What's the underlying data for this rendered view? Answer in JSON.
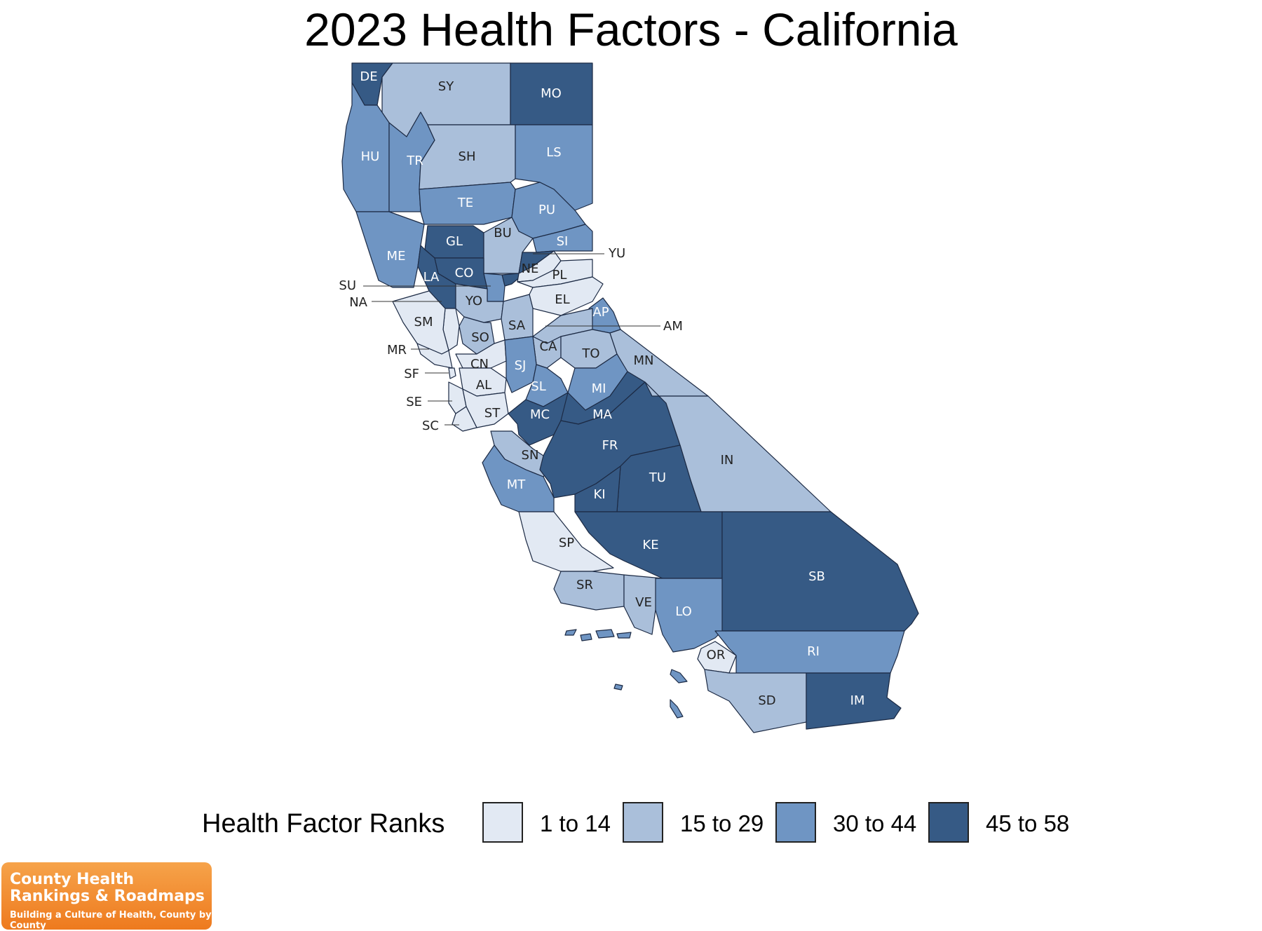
{
  "title": "2023 Health Factors - California",
  "colors": {
    "rank_1_14": "#e2e9f3",
    "rank_15_29": "#aabfda",
    "rank_30_44": "#6f95c3",
    "rank_45_58": "#365a85",
    "label_dark": "#222222",
    "label_light": "#ffffff"
  },
  "legend": {
    "title": "Health Factor Ranks",
    "items": [
      {
        "label": "1 to 14",
        "bin": "rank_1_14"
      },
      {
        "label": "15 to 29",
        "bin": "rank_15_29"
      },
      {
        "label": "30 to 44",
        "bin": "rank_30_44"
      },
      {
        "label": "45 to 58",
        "bin": "rank_45_58"
      }
    ]
  },
  "counties": [
    {
      "code": "DE",
      "bin": "rank_45_58"
    },
    {
      "code": "SY",
      "bin": "rank_15_29"
    },
    {
      "code": "MO",
      "bin": "rank_45_58"
    },
    {
      "code": "HU",
      "bin": "rank_30_44"
    },
    {
      "code": "TR",
      "bin": "rank_30_44"
    },
    {
      "code": "SH",
      "bin": "rank_15_29"
    },
    {
      "code": "LS",
      "bin": "rank_30_44"
    },
    {
      "code": "TE",
      "bin": "rank_30_44"
    },
    {
      "code": "PU",
      "bin": "rank_30_44"
    },
    {
      "code": "ME",
      "bin": "rank_30_44"
    },
    {
      "code": "GL",
      "bin": "rank_45_58"
    },
    {
      "code": "BU",
      "bin": "rank_15_29"
    },
    {
      "code": "SI",
      "bin": "rank_30_44"
    },
    {
      "code": "YU",
      "bin": "rank_45_58"
    },
    {
      "code": "LA",
      "bin": "rank_45_58"
    },
    {
      "code": "CO",
      "bin": "rank_45_58"
    },
    {
      "code": "NE",
      "bin": "rank_1_14"
    },
    {
      "code": "PL",
      "bin": "rank_1_14"
    },
    {
      "code": "SU",
      "bin": "rank_30_44"
    },
    {
      "code": "NA",
      "bin": "rank_1_14"
    },
    {
      "code": "SM",
      "bin": "rank_1_14"
    },
    {
      "code": "YO",
      "bin": "rank_15_29"
    },
    {
      "code": "EL",
      "bin": "rank_1_14"
    },
    {
      "code": "AP",
      "bin": "rank_30_44"
    },
    {
      "code": "SO",
      "bin": "rank_15_29"
    },
    {
      "code": "SA",
      "bin": "rank_15_29"
    },
    {
      "code": "AM",
      "bin": "rank_15_29"
    },
    {
      "code": "MR",
      "bin": "rank_1_14"
    },
    {
      "code": "CA",
      "bin": "rank_15_29"
    },
    {
      "code": "TO",
      "bin": "rank_15_29"
    },
    {
      "code": "CN",
      "bin": "rank_1_14"
    },
    {
      "code": "SJ",
      "bin": "rank_30_44"
    },
    {
      "code": "MN",
      "bin": "rank_15_29"
    },
    {
      "code": "SF",
      "bin": "rank_1_14"
    },
    {
      "code": "AL",
      "bin": "rank_1_14"
    },
    {
      "code": "SL",
      "bin": "rank_30_44"
    },
    {
      "code": "MI",
      "bin": "rank_30_44"
    },
    {
      "code": "SE",
      "bin": "rank_1_14"
    },
    {
      "code": "ST",
      "bin": "rank_1_14"
    },
    {
      "code": "MC",
      "bin": "rank_45_58"
    },
    {
      "code": "MA",
      "bin": "rank_45_58"
    },
    {
      "code": "SC",
      "bin": "rank_1_14"
    },
    {
      "code": "SN",
      "bin": "rank_15_29"
    },
    {
      "code": "FR",
      "bin": "rank_45_58"
    },
    {
      "code": "IN",
      "bin": "rank_15_29"
    },
    {
      "code": "MT",
      "bin": "rank_30_44"
    },
    {
      "code": "TU",
      "bin": "rank_45_58"
    },
    {
      "code": "KI",
      "bin": "rank_45_58"
    },
    {
      "code": "SP",
      "bin": "rank_1_14"
    },
    {
      "code": "KE",
      "bin": "rank_45_58"
    },
    {
      "code": "SB",
      "bin": "rank_45_58"
    },
    {
      "code": "SR",
      "bin": "rank_15_29"
    },
    {
      "code": "VE",
      "bin": "rank_15_29"
    },
    {
      "code": "LO",
      "bin": "rank_30_44"
    },
    {
      "code": "OR",
      "bin": "rank_1_14"
    },
    {
      "code": "RI",
      "bin": "rank_30_44"
    },
    {
      "code": "SD",
      "bin": "rank_15_29"
    },
    {
      "code": "IM",
      "bin": "rank_45_58"
    }
  ],
  "logo": {
    "line1": "County Health",
    "line2": "Rankings & Roadmaps",
    "tagline": "Building a Culture of Health, County by County"
  }
}
